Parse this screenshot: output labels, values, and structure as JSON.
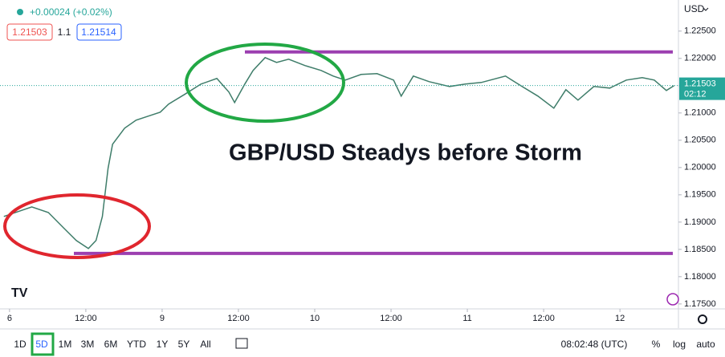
{
  "header": {
    "change": "+0.00024 (+0.02%)",
    "sell": "1.21503",
    "spread": "1.1",
    "buy": "1.21514",
    "currency": "USD"
  },
  "chart_data": {
    "type": "line",
    "annotation": "GBP/USD Steadys before Storm",
    "color": "#3f7d6a",
    "x": [
      -0.9,
      3.5,
      6.1,
      8.6,
      10.5,
      12.4,
      13.6,
      14.6,
      15.5,
      16.2,
      18.1,
      19.9,
      21.8,
      23.7,
      25.0,
      27.5,
      30.1,
      32.6,
      34.5,
      35.4,
      37.0,
      38.3,
      40.2,
      42.0,
      43.9,
      46.5,
      49.0,
      50.9,
      52.8,
      55.3,
      57.8,
      60.4,
      61.6,
      63.5,
      66.0,
      69.2,
      71.7,
      74.2,
      78.0,
      80.6,
      83.1,
      85.6,
      87.5,
      89.4,
      91.9,
      94.4,
      97.0,
      99.5,
      101.4,
      103.3,
      104.5
    ],
    "values": [
      1.19103,
      1.19279,
      1.19176,
      1.18882,
      1.18662,
      1.18515,
      1.18662,
      1.19103,
      1.19985,
      1.20426,
      1.20721,
      1.20868,
      1.20941,
      1.21015,
      1.21162,
      1.21338,
      1.21529,
      1.21632,
      1.21382,
      1.21191,
      1.21529,
      1.21779,
      1.22015,
      1.21926,
      1.21985,
      1.21868,
      1.21779,
      1.21676,
      1.21603,
      1.21706,
      1.21721,
      1.21603,
      1.21309,
      1.21676,
      1.21574,
      1.21485,
      1.21529,
      1.21559,
      1.21676,
      1.21485,
      1.21309,
      1.21088,
      1.21426,
      1.21235,
      1.21485,
      1.21456,
      1.21603,
      1.21647,
      1.21603,
      1.21412,
      1.215
    ],
    "xlim": [
      -1.5,
      105.2
    ],
    "xticks": [
      {
        "value": 0,
        "label": "6"
      },
      {
        "value": 12,
        "label": "12:00"
      },
      {
        "value": 24,
        "label": "9"
      },
      {
        "value": 36,
        "label": "12:00"
      },
      {
        "value": 48,
        "label": "10"
      },
      {
        "value": 60,
        "label": "12:00"
      },
      {
        "value": 72,
        "label": "11"
      },
      {
        "value": 84,
        "label": "12:00"
      },
      {
        "value": 96,
        "label": "12"
      }
    ],
    "ylim": [
      1.1741,
      1.2307
    ],
    "yticks": [
      {
        "value": 1.175,
        "label": "1.17500"
      },
      {
        "value": 1.18,
        "label": "1.18000"
      },
      {
        "value": 1.185,
        "label": "1.18500"
      },
      {
        "value": 1.19,
        "label": "1.19000"
      },
      {
        "value": 1.195,
        "label": "1.19500"
      },
      {
        "value": 1.2,
        "label": "1.20000"
      },
      {
        "value": 1.205,
        "label": "1.20500"
      },
      {
        "value": 1.21,
        "label": "1.21000"
      },
      {
        "value": 1.215,
        "label": "1.21500"
      },
      {
        "value": 1.22,
        "label": "1.22000"
      },
      {
        "value": 1.225,
        "label": "1.22500"
      }
    ],
    "levels": [
      1.22118,
      1.18426
    ],
    "level_color": "#9c3fb0",
    "last_price": 1.21503,
    "countdown": "02:12"
  },
  "toolbar": {
    "ranges": [
      "1D",
      "5D",
      "1M",
      "3M",
      "6M",
      "YTD",
      "1Y",
      "5Y",
      "All"
    ],
    "time": "08:02:48 (UTC)",
    "percent": "%",
    "log": "log",
    "auto": "auto"
  }
}
